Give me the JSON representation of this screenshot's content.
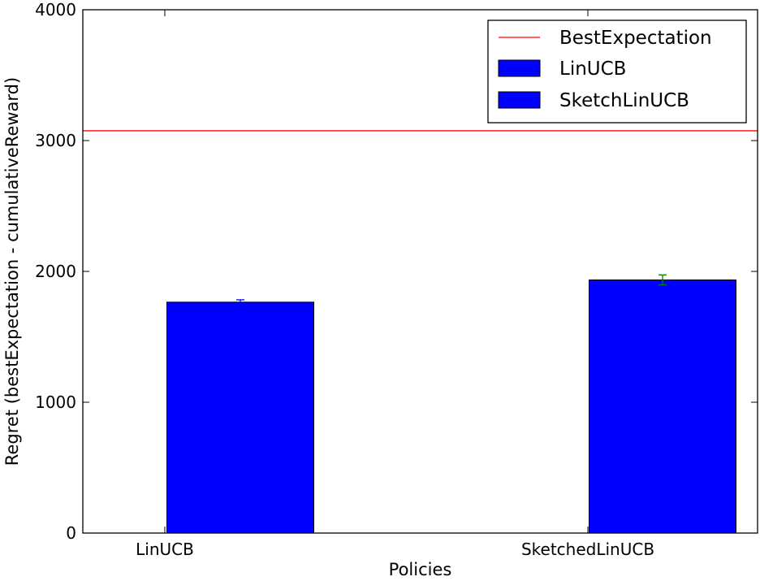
{
  "chart_data": {
    "type": "bar",
    "title": "",
    "xlabel": "Policies",
    "ylabel": "Regret (bestExpectation - cumulativeReward)",
    "ylim": [
      0,
      4000
    ],
    "yticks": [
      0,
      1000,
      2000,
      3000,
      4000
    ],
    "categories": [
      "LinUCB",
      "SketchedLinUCB"
    ],
    "series": [
      {
        "name": "LinUCB",
        "color": "#0000ff",
        "values": [
          1765,
          null
        ],
        "error": [
          18,
          null
        ],
        "error_color": "#0000ff"
      },
      {
        "name": "SketchLinUCB",
        "color": "#0000ff",
        "values": [
          null,
          1935
        ],
        "error": [
          null,
          38
        ],
        "error_color": "#008000"
      }
    ],
    "reference_line": {
      "name": "BestExpectation",
      "value": 3075,
      "color": "#ff0000"
    },
    "legend": {
      "placement": "top-right",
      "entries": [
        {
          "label": "BestExpectation",
          "kind": "line",
          "color": "#ff0000"
        },
        {
          "label": "LinUCB",
          "kind": "patch",
          "color": "#0000ff"
        },
        {
          "label": "SketchLinUCB",
          "kind": "patch",
          "color": "#0000ff"
        }
      ]
    },
    "grid": false
  }
}
